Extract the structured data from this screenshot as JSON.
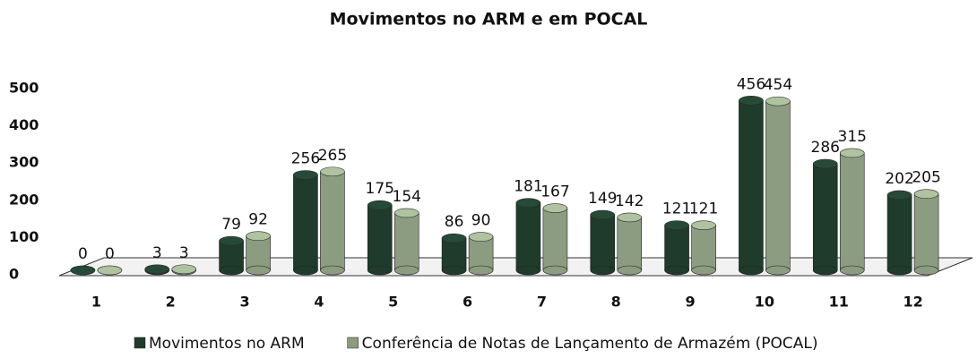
{
  "chart_data": {
    "type": "bar",
    "title": "Movimentos no ARM e em POCAL",
    "categories": [
      "1",
      "2",
      "3",
      "4",
      "5",
      "6",
      "7",
      "8",
      "9",
      "10",
      "11",
      "12"
    ],
    "series": [
      {
        "name": "Movimentos no ARM",
        "color": "#1f3b2b",
        "values": [
          0,
          3,
          79,
          256,
          175,
          86,
          181,
          149,
          121,
          456,
          286,
          202
        ]
      },
      {
        "name": "Conferência de Notas de Lançamento de Armazém (POCAL)",
        "color": "#8c9c80",
        "values": [
          0,
          3,
          92,
          265,
          154,
          90,
          167,
          142,
          121,
          454,
          315,
          205
        ]
      }
    ],
    "ylim": [
      0,
      500
    ],
    "yticks": [
      0,
      100,
      200,
      300,
      400,
      500
    ],
    "grid": false,
    "legend": "bottom"
  }
}
